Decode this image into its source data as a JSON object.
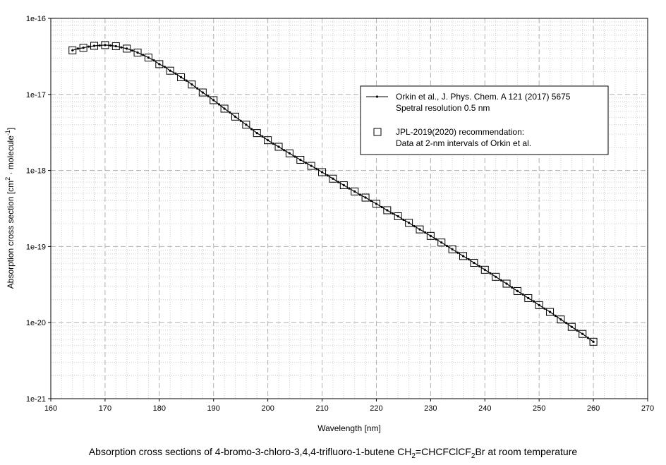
{
  "chart_data": {
    "type": "line",
    "xlabel": "Wavelength [nm]",
    "ylabel_parts": [
      "Absorption cross section [cm",
      "2",
      " · molecule",
      "-1",
      "]"
    ],
    "xlim": [
      160,
      270
    ],
    "ylim_log10": [
      -21,
      -16
    ],
    "y_scale": "log",
    "grid": "major dashed, minor dotted",
    "x_ticks": [
      "160",
      "170",
      "180",
      "190",
      "200",
      "210",
      "220",
      "230",
      "240",
      "250",
      "260",
      "270"
    ],
    "y_ticks": [
      "1e-21",
      "1e-20",
      "1e-19",
      "1e-18",
      "1e-17",
      "1e-16"
    ],
    "legend_position": "upper-right",
    "series": [
      {
        "name": "Orkin et al., J. Phys. Chem. A 121 (2017) 5675",
        "name_line2": "Spetral resolution 0.5 nm",
        "style": "line-with-small-dots",
        "color": "#000000",
        "x": [
          164,
          165,
          166,
          167,
          168,
          169,
          170,
          171,
          172,
          173,
          174,
          175,
          176,
          177,
          178,
          179,
          180,
          181,
          182,
          183,
          184,
          185,
          186,
          187,
          188,
          189,
          190,
          191,
          192,
          193,
          194,
          195,
          196,
          197,
          198,
          199,
          200,
          201,
          202,
          203,
          204,
          205,
          206,
          207,
          208,
          209,
          210,
          211,
          212,
          213,
          214,
          215,
          216,
          217,
          218,
          219,
          220,
          221,
          222,
          223,
          224,
          225,
          226,
          227,
          228,
          229,
          230,
          231,
          232,
          233,
          234,
          235,
          236,
          237,
          238,
          239,
          240,
          241,
          242,
          243,
          244,
          245,
          246,
          247,
          248,
          249,
          250,
          251,
          252,
          253,
          254,
          255,
          256,
          257,
          258,
          259,
          260
        ],
        "y": [
          3.8e-17,
          4e-17,
          4.1e-17,
          4.25e-17,
          4.35e-17,
          4.4e-17,
          4.45e-17,
          4.4e-17,
          4.3e-17,
          4.15e-17,
          4e-17,
          3.78e-17,
          3.55e-17,
          3.3e-17,
          3.05e-17,
          2.8e-17,
          2.5e-17,
          2.3e-17,
          2.05e-17,
          1.88e-17,
          1.68e-17,
          1.52e-17,
          1.35e-17,
          1.2e-17,
          1.06e-17,
          9.5e-18,
          8.4e-18,
          7.4e-18,
          6.5e-18,
          5.8e-18,
          5.1e-18,
          4.5e-18,
          4e-18,
          3.5e-18,
          3.1e-18,
          2.8e-18,
          2.5e-18,
          2.25e-18,
          2.05e-18,
          1.85e-18,
          1.68e-18,
          1.52e-18,
          1.38e-18,
          1.26e-18,
          1.15e-18,
          1.05e-18,
          9.5e-19,
          8.6e-19,
          7.8e-19,
          7.05e-19,
          6.4e-19,
          5.8e-19,
          5.3e-19,
          4.8e-19,
          4.4e-19,
          4e-19,
          3.65e-19,
          3.3e-19,
          3e-19,
          2.72e-19,
          2.5e-19,
          2.25e-19,
          2.05e-19,
          1.85e-19,
          1.68e-19,
          1.53e-19,
          1.38e-19,
          1.25e-19,
          1.13e-19,
          1.02e-19,
          9.2e-20,
          8.3e-20,
          7.5e-20,
          6.8e-20,
          6.1e-20,
          5.5e-20,
          4.95e-20,
          4.45e-20,
          4e-20,
          3.6e-20,
          3.25e-20,
          2.9e-20,
          2.6e-20,
          2.35e-20,
          2.1e-20,
          1.9e-20,
          1.7e-20,
          1.53e-20,
          1.38e-20,
          1.23e-20,
          1.1e-20,
          9.9e-21,
          8.8e-21,
          7.9e-21,
          7.1e-21,
          6.3e-21,
          5.6e-21
        ]
      },
      {
        "name": "JPL-2019(2020) recommendation:",
        "name_line2": "Data at 2-nm intervals of Orkin et al.",
        "style": "open-squares",
        "color": "#000000",
        "x": [
          164,
          166,
          168,
          170,
          172,
          174,
          176,
          178,
          180,
          182,
          184,
          186,
          188,
          190,
          192,
          194,
          196,
          198,
          200,
          202,
          204,
          206,
          208,
          210,
          212,
          214,
          216,
          218,
          220,
          222,
          224,
          226,
          228,
          230,
          232,
          234,
          236,
          238,
          240,
          242,
          244,
          246,
          248,
          250,
          252,
          254,
          256,
          258,
          260
        ],
        "y": [
          3.8e-17,
          4.1e-17,
          4.35e-17,
          4.45e-17,
          4.3e-17,
          4e-17,
          3.55e-17,
          3.05e-17,
          2.5e-17,
          2.05e-17,
          1.68e-17,
          1.35e-17,
          1.06e-17,
          8.4e-18,
          6.5e-18,
          5.1e-18,
          4e-18,
          3.1e-18,
          2.5e-18,
          2.05e-18,
          1.68e-18,
          1.38e-18,
          1.15e-18,
          9.5e-19,
          7.8e-19,
          6.4e-19,
          5.3e-19,
          4.4e-19,
          3.65e-19,
          3e-19,
          2.5e-19,
          2.05e-19,
          1.68e-19,
          1.38e-19,
          1.13e-19,
          9.2e-20,
          7.5e-20,
          6.1e-20,
          4.95e-20,
          4e-20,
          3.25e-20,
          2.6e-20,
          2.1e-20,
          1.7e-20,
          1.38e-20,
          1.1e-20,
          8.8e-21,
          7.1e-21,
          5.6e-21
        ]
      }
    ]
  },
  "caption": {
    "p1": "Absorption cross sections of 4-bromo-3-chloro-3,4,4-trifluoro-1-butene CH",
    "s1": "2",
    "p2": "=CHCFClCF",
    "s2": "2",
    "p3": "Br at room temperature"
  }
}
